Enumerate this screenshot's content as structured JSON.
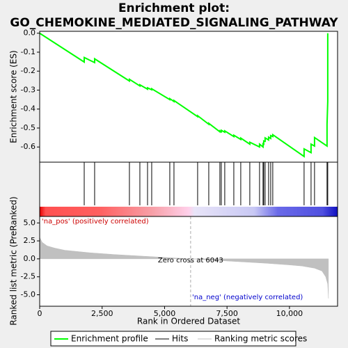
{
  "chart_data": [
    {
      "type": "line",
      "title": "Enrichment plot:",
      "subtitle": "GO_CHEMOKINE_MEDIATED_SIGNALING_PATHWAY",
      "ylabel": "Enrichment score (ES)",
      "xlim": [
        0,
        11925
      ],
      "ylim": [
        -0.68,
        0.01
      ],
      "yticks": [
        {
          "value": 0,
          "label": "0.0"
        },
        {
          "value": -0.1,
          "label": "-0.1"
        },
        {
          "value": -0.2,
          "label": "-0.2"
        },
        {
          "value": -0.3,
          "label": "-0.3"
        },
        {
          "value": -0.4,
          "label": "-0.4"
        },
        {
          "value": -0.5,
          "label": "-0.5"
        },
        {
          "value": -0.6,
          "label": "-0.6"
        }
      ],
      "x": [
        0,
        1783,
        1783,
        2200,
        2200,
        3593,
        3593,
        4011,
        4011,
        4318,
        4318,
        4485,
        4485,
        5209,
        5209,
        5376,
        5376,
        6323,
        6323,
        6769,
        6769,
        7214,
        7214,
        7270,
        7270,
        7409,
        7409,
        7772,
        7772,
        8050,
        8050,
        8412,
        8412,
        8802,
        8802,
        8942,
        8942,
        8969,
        8969,
        9025,
        9025,
        9164,
        9164,
        9248,
        9248,
        9331,
        9331,
        10585,
        10585,
        10864,
        10864,
        11003,
        11003,
        11504,
        11504,
        11532,
        11532
      ],
      "series": [
        {
          "name": "Enrichment profile",
          "color": "#00ff00",
          "values": [
            0,
            -0.152,
            -0.128,
            -0.155,
            -0.135,
            -0.252,
            -0.243,
            -0.278,
            -0.272,
            -0.295,
            -0.288,
            -0.298,
            -0.293,
            -0.35,
            -0.345,
            -0.36,
            -0.355,
            -0.44,
            -0.435,
            -0.48,
            -0.475,
            -0.52,
            -0.515,
            -0.52,
            -0.512,
            -0.522,
            -0.515,
            -0.545,
            -0.538,
            -0.56,
            -0.553,
            -0.585,
            -0.575,
            -0.6,
            -0.585,
            -0.6,
            -0.583,
            -0.585,
            -0.568,
            -0.57,
            -0.552,
            -0.563,
            -0.548,
            -0.555,
            -0.54,
            -0.545,
            -0.535,
            -0.65,
            -0.61,
            -0.63,
            -0.585,
            -0.595,
            -0.55,
            -0.595,
            -0.48,
            -0.36,
            0
          ]
        }
      ],
      "hits": {
        "name": "Hits",
        "color": "#000000",
        "x": [
          1783,
          2200,
          3593,
          4011,
          4318,
          4485,
          5209,
          5376,
          6323,
          6769,
          7214,
          7270,
          7409,
          7772,
          8050,
          8412,
          8802,
          8942,
          8969,
          9025,
          9164,
          9248,
          9331,
          10585,
          10864,
          11003,
          11504,
          11532
        ]
      }
    },
    {
      "type": "area",
      "xlabel": "Rank in Ordered Dataset",
      "ylabel": "Ranked list metric (PreRanked)",
      "xlim": [
        0,
        11925
      ],
      "xticks": [
        0,
        {
          "value": 2500,
          "label": "2,500"
        },
        {
          "value": 5000,
          "label": "5,000"
        },
        {
          "value": 7500,
          "label": "7,500"
        },
        {
          "value": 10000,
          "label": "10,000"
        }
      ],
      "ylim": [
        -6.6,
        5.9
      ],
      "yticks": [
        {
          "value": 5,
          "label": "5.0"
        },
        {
          "value": 2.5,
          "label": "2.5"
        },
        {
          "value": 0,
          "label": "0.0"
        },
        {
          "value": -2.5,
          "label": "-2.5"
        },
        {
          "value": -5,
          "label": "-5.0"
        }
      ],
      "x": [
        0,
        100,
        300,
        600,
        1000,
        2000,
        3000,
        4000,
        5000,
        6043,
        7000,
        8000,
        9000,
        10000,
        10500,
        11000,
        11300,
        11450,
        11530,
        11560
      ],
      "series": [
        {
          "name": "Ranking metric scores",
          "color": "#c0c0c0",
          "values": [
            3.0,
            2.3,
            1.8,
            1.5,
            1.2,
            0.85,
            0.6,
            0.4,
            0.2,
            0,
            -0.2,
            -0.4,
            -0.6,
            -0.85,
            -1.0,
            -1.3,
            -1.7,
            -2.5,
            -3.5,
            -5.5
          ]
        }
      ],
      "zero_cross": 6043,
      "annotations": [
        "'na_pos' (positively correlated)",
        "Zero cross at 6043",
        "'na_neg' (negatively correlated)"
      ]
    }
  ]
}
